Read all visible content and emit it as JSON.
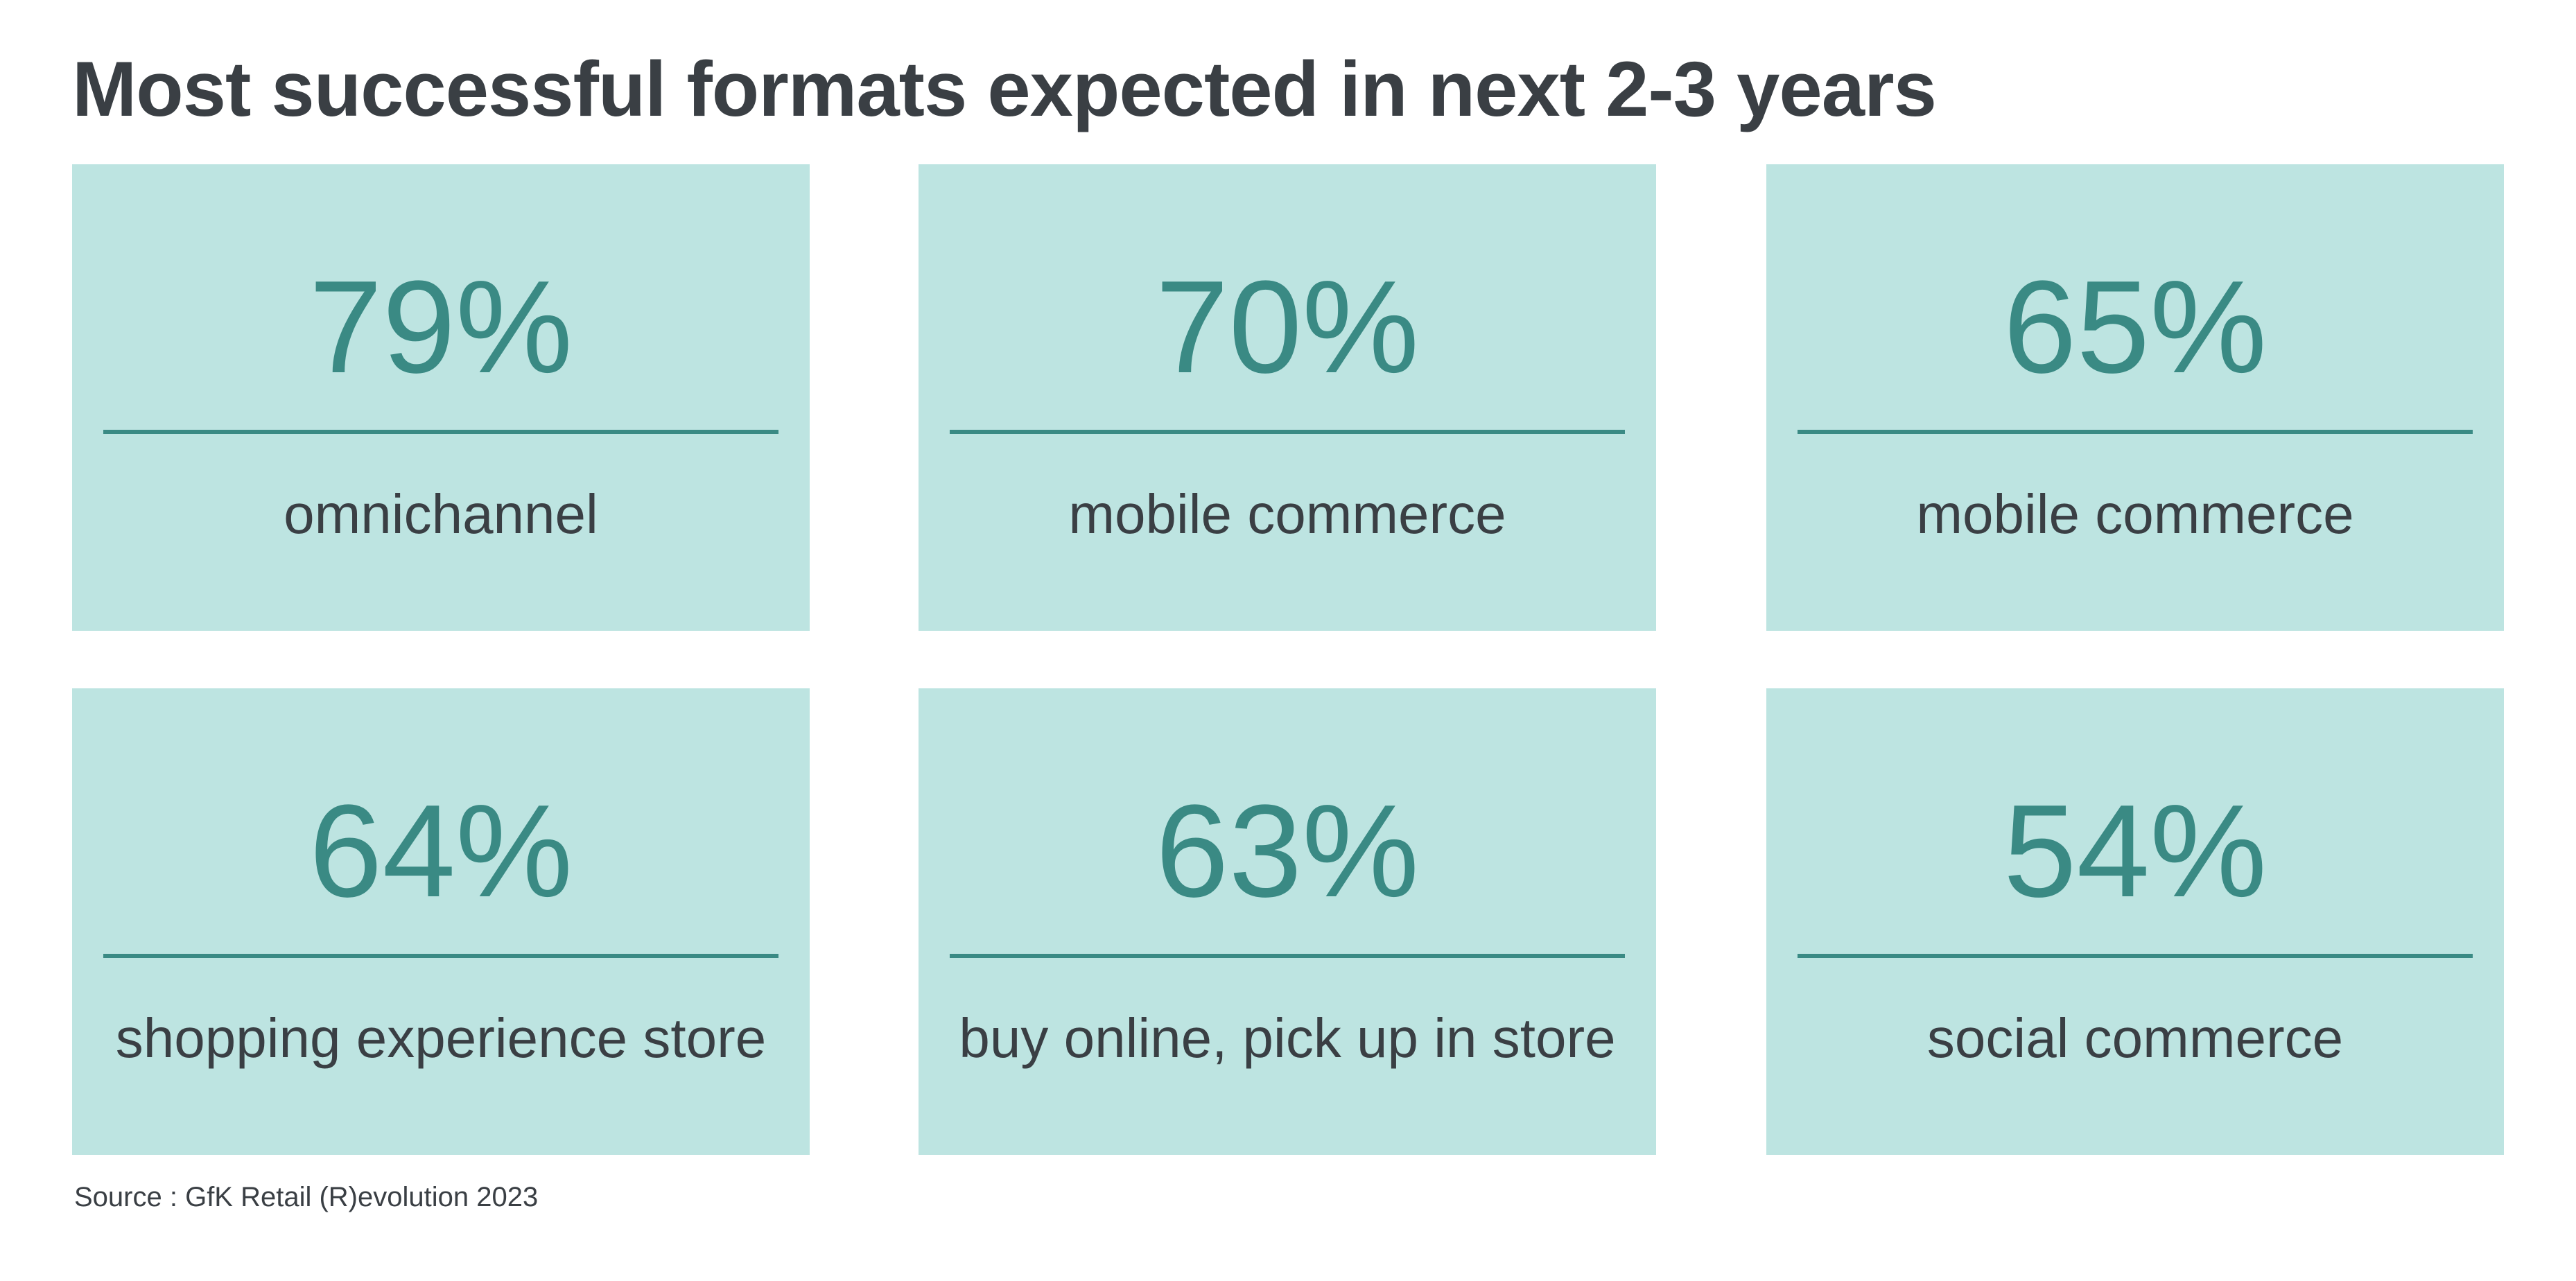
{
  "title": "Most successful formats expected in next 2-3 years",
  "cards": [
    {
      "value": "79%",
      "label": "omnichannel"
    },
    {
      "value": "70%",
      "label": "mobile commerce"
    },
    {
      "value": "65%",
      "label": "mobile commerce"
    },
    {
      "value": "64%",
      "label": "shopping experience store"
    },
    {
      "value": "63%",
      "label": "buy online, pick up in store"
    },
    {
      "value": "54%",
      "label": "social commerce"
    }
  ],
  "source": "Source : GfK Retail (R)evolution 2023"
}
